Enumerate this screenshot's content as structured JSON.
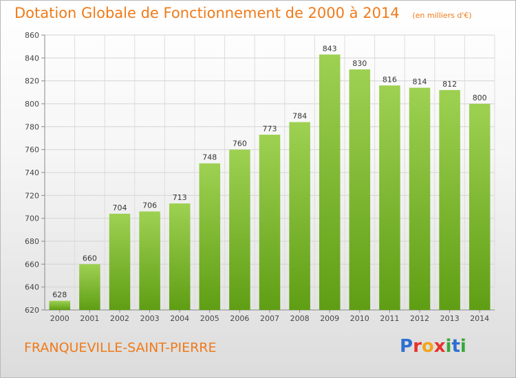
{
  "chart_data": {
    "type": "bar",
    "title": "Dotation Globale de Fonctionnement de 2000 à 2014",
    "subtitle": "(en milliers d'€)",
    "categories": [
      "2000",
      "2001",
      "2002",
      "2003",
      "2004",
      "2005",
      "2006",
      "2007",
      "2008",
      "2009",
      "2010",
      "2011",
      "2012",
      "2013",
      "2014"
    ],
    "values": [
      628,
      660,
      704,
      706,
      713,
      748,
      760,
      773,
      784,
      843,
      830,
      816,
      814,
      812,
      800
    ],
    "ylim": [
      620,
      860
    ],
    "yticks": [
      620,
      640,
      660,
      680,
      700,
      720,
      740,
      760,
      780,
      800,
      820,
      840,
      860
    ],
    "grid": true,
    "bar_color_top": "#9ed152",
    "bar_color_bottom": "#5f9e14"
  },
  "commune": "FRANQUEVILLE-SAINT-PIERRE",
  "logo": {
    "text": "Proxiti",
    "letters": [
      {
        "ch": "P",
        "color": "#2f6fd0"
      },
      {
        "ch": "r",
        "color": "#e8322a"
      },
      {
        "ch": "o",
        "color": "#f2a51c"
      },
      {
        "ch": "x",
        "color": "#e8322a"
      },
      {
        "ch": "i",
        "color": "#37a83a"
      },
      {
        "ch": "t",
        "color": "#2f6fd0"
      },
      {
        "ch": "i",
        "color": "#37a83a"
      }
    ]
  }
}
